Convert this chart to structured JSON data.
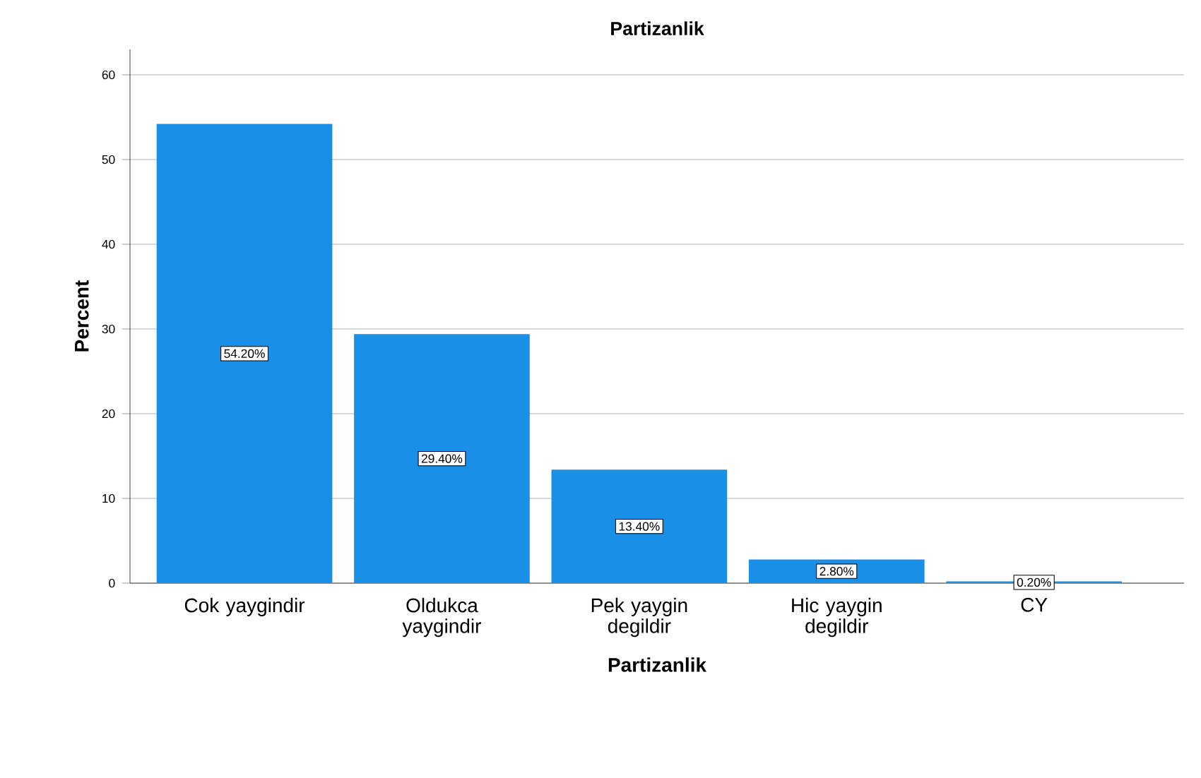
{
  "chart_data": {
    "type": "bar",
    "title": "Partizanlik",
    "xlabel": "Partizanlik",
    "ylabel": "Percent",
    "categories": [
      "Cok yaygindir",
      "Oldukca yaygindir",
      "Pek yaygin degildir",
      "Hic yaygin degildir",
      "CY"
    ],
    "values": [
      54.2,
      29.4,
      13.4,
      2.8,
      0.2
    ],
    "value_labels": [
      "54.20%",
      "29.40%",
      "13.40%",
      "2.80%",
      "0.20%"
    ],
    "color": "#1a8fe8",
    "ylim": [
      0,
      63
    ],
    "yticks": [
      0,
      10,
      20,
      30,
      40,
      50,
      60
    ],
    "grid": "y"
  }
}
